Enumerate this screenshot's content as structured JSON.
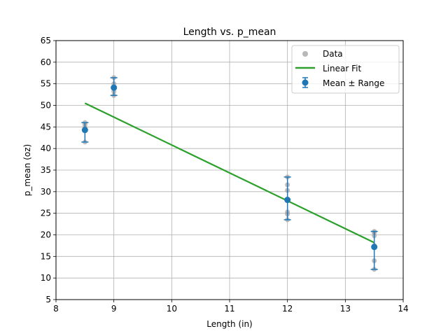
{
  "chart_data": {
    "type": "scatter",
    "title": "Length vs. p_mean",
    "xlabel": "Length (in)",
    "ylabel": "p_mean (oz)",
    "xlim": [
      8,
      14
    ],
    "ylim": [
      5,
      65
    ],
    "xticks": [
      "8",
      "9",
      "10",
      "11",
      "12",
      "13",
      "14"
    ],
    "yticks": [
      "5",
      "10",
      "15",
      "20",
      "25",
      "30",
      "35",
      "40",
      "45",
      "50",
      "55",
      "60",
      "65"
    ],
    "grid": true,
    "legend_position": "top-right",
    "series": [
      {
        "name": "Data",
        "kind": "scatter",
        "color": "#a0a0a0",
        "points": [
          {
            "x": 8.5,
            "y": 41.5
          },
          {
            "x": 8.5,
            "y": 44.8
          },
          {
            "x": 8.5,
            "y": 45.5
          },
          {
            "x": 8.5,
            "y": 46.0
          },
          {
            "x": 9.0,
            "y": 52.3
          },
          {
            "x": 9.0,
            "y": 53.2
          },
          {
            "x": 9.0,
            "y": 54.0
          },
          {
            "x": 9.0,
            "y": 55.0
          },
          {
            "x": 9.0,
            "y": 56.4
          },
          {
            "x": 12.0,
            "y": 23.5
          },
          {
            "x": 12.0,
            "y": 24.8
          },
          {
            "x": 12.0,
            "y": 25.3
          },
          {
            "x": 12.0,
            "y": 28.2
          },
          {
            "x": 12.0,
            "y": 30.3
          },
          {
            "x": 12.0,
            "y": 31.6
          },
          {
            "x": 12.0,
            "y": 33.4
          },
          {
            "x": 13.5,
            "y": 12.0
          },
          {
            "x": 13.5,
            "y": 14.0
          },
          {
            "x": 13.5,
            "y": 17.5
          },
          {
            "x": 13.5,
            "y": 19.8
          },
          {
            "x": 13.5,
            "y": 20.5
          },
          {
            "x": 13.5,
            "y": 20.8
          }
        ]
      },
      {
        "name": "Linear Fit",
        "kind": "line",
        "color": "#2ca02c",
        "points": [
          {
            "x": 8.5,
            "y": 50.5
          },
          {
            "x": 13.5,
            "y": 18.2
          }
        ]
      },
      {
        "name": "Mean ± Range",
        "kind": "errorbar",
        "color": "#1f77b4",
        "points": [
          {
            "x": 8.5,
            "y": 44.3,
            "ymin": 41.5,
            "ymax": 46.0
          },
          {
            "x": 9.0,
            "y": 54.1,
            "ymin": 52.3,
            "ymax": 56.4
          },
          {
            "x": 12.0,
            "y": 28.1,
            "ymin": 23.5,
            "ymax": 33.4
          },
          {
            "x": 13.5,
            "y": 17.2,
            "ymin": 12.0,
            "ymax": 20.8
          }
        ]
      }
    ]
  }
}
